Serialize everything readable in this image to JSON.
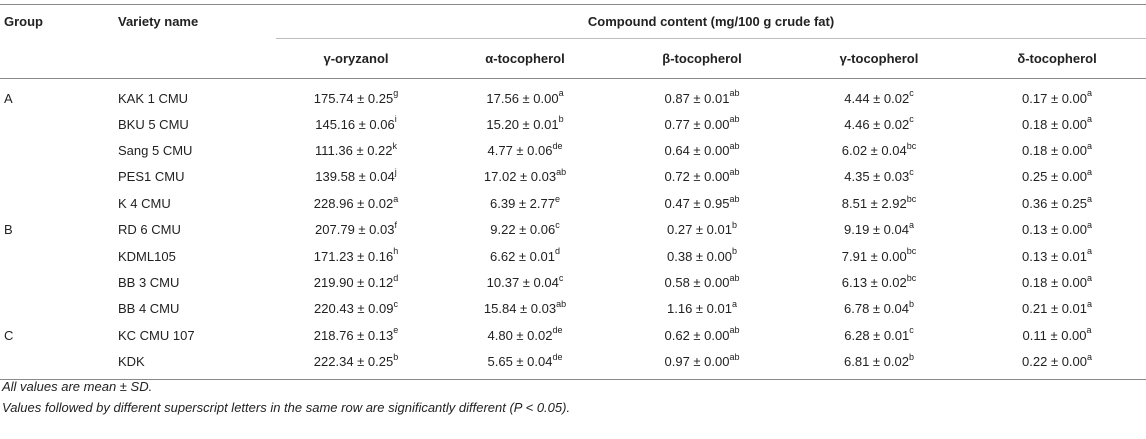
{
  "header": {
    "group": "Group",
    "variety": "Variety name",
    "compound_content": "Compound content (mg/100 g crude fat)",
    "columns": [
      "γ-oryzanol",
      "α-tocopherol",
      "β-tocopherol",
      "γ-tocopherol",
      "δ-tocopherol"
    ]
  },
  "rows": [
    {
      "group": "A",
      "variety": "KAK 1 CMU",
      "cells": [
        {
          "v": "175.74 ± 0.25",
          "s": "g"
        },
        {
          "v": "17.56 ± 0.00",
          "s": "a"
        },
        {
          "v": "0.87 ± 0.01",
          "s": "ab"
        },
        {
          "v": "4.44 ± 0.02",
          "s": "c"
        },
        {
          "v": "0.17 ± 0.00",
          "s": "a"
        }
      ]
    },
    {
      "group": "",
      "variety": "BKU 5 CMU",
      "cells": [
        {
          "v": "145.16 ± 0.06",
          "s": "i"
        },
        {
          "v": "15.20 ± 0.01",
          "s": "b"
        },
        {
          "v": "0.77 ± 0.00",
          "s": "ab"
        },
        {
          "v": "4.46 ± 0.02",
          "s": "c"
        },
        {
          "v": "0.18 ± 0.00",
          "s": "a"
        }
      ]
    },
    {
      "group": "",
      "variety": "Sang 5 CMU",
      "cells": [
        {
          "v": "111.36 ± 0.22",
          "s": "k"
        },
        {
          "v": "4.77 ± 0.06",
          "s": "de"
        },
        {
          "v": "0.64 ± 0.00",
          "s": "ab"
        },
        {
          "v": "6.02 ± 0.04",
          "s": "bc"
        },
        {
          "v": "0.18 ± 0.00",
          "s": "a"
        }
      ]
    },
    {
      "group": "",
      "variety": "PES1 CMU",
      "cells": [
        {
          "v": "139.58 ± 0.04",
          "s": "j"
        },
        {
          "v": "17.02 ± 0.03",
          "s": "ab"
        },
        {
          "v": "0.72 ± 0.00",
          "s": "ab"
        },
        {
          "v": "4.35 ± 0.03",
          "s": "c"
        },
        {
          "v": "0.25 ± 0.00",
          "s": "a"
        }
      ]
    },
    {
      "group": "",
      "variety": "K 4 CMU",
      "cells": [
        {
          "v": "228.96 ± 0.02",
          "s": "a"
        },
        {
          "v": "6.39 ± 2.77",
          "s": "e"
        },
        {
          "v": "0.47 ± 0.95",
          "s": "ab"
        },
        {
          "v": "8.51 ± 2.92",
          "s": "bc"
        },
        {
          "v": "0.36 ± 0.25",
          "s": "a"
        }
      ]
    },
    {
      "group": "B",
      "variety": "RD 6 CMU",
      "cells": [
        {
          "v": "207.79 ± 0.03",
          "s": "f"
        },
        {
          "v": "9.22 ± 0.06",
          "s": "c"
        },
        {
          "v": "0.27 ± 0.01",
          "s": "b"
        },
        {
          "v": "9.19 ± 0.04",
          "s": "a"
        },
        {
          "v": "0.13 ± 0.00",
          "s": "a"
        }
      ]
    },
    {
      "group": "",
      "variety": "KDML105",
      "cells": [
        {
          "v": "171.23 ± 0.16",
          "s": "h"
        },
        {
          "v": "6.62 ± 0.01",
          "s": "d"
        },
        {
          "v": "0.38 ± 0.00",
          "s": "b"
        },
        {
          "v": "7.91 ± 0.00",
          "s": "bc"
        },
        {
          "v": "0.13 ± 0.01",
          "s": "a"
        }
      ]
    },
    {
      "group": "",
      "variety": "BB 3 CMU",
      "cells": [
        {
          "v": "219.90 ± 0.12",
          "s": "d"
        },
        {
          "v": "10.37 ± 0.04",
          "s": "c"
        },
        {
          "v": "0.58 ± 0.00",
          "s": "ab"
        },
        {
          "v": "6.13 ± 0.02",
          "s": "bc"
        },
        {
          "v": "0.18 ± 0.00",
          "s": "a"
        }
      ]
    },
    {
      "group": "",
      "variety": "BB 4 CMU",
      "cells": [
        {
          "v": "220.43 ± 0.09",
          "s": "c"
        },
        {
          "v": "15.84 ± 0.03",
          "s": "ab"
        },
        {
          "v": "1.16 ± 0.01",
          "s": "a"
        },
        {
          "v": "6.78 ± 0.04",
          "s": "b"
        },
        {
          "v": "0.21 ± 0.01",
          "s": "a"
        }
      ]
    },
    {
      "group": "C",
      "variety": "KC CMU 107",
      "cells": [
        {
          "v": "218.76 ± 0.13",
          "s": "e"
        },
        {
          "v": "4.80 ± 0.02",
          "s": "de"
        },
        {
          "v": "0.62 ± 0.00",
          "s": "ab"
        },
        {
          "v": "6.28 ± 0.01",
          "s": "c"
        },
        {
          "v": "0.11 ± 0.00",
          "s": "a"
        }
      ]
    },
    {
      "group": "",
      "variety": "KDK",
      "cells": [
        {
          "v": "222.34 ± 0.25",
          "s": "b"
        },
        {
          "v": "5.65 ± 0.04",
          "s": "de"
        },
        {
          "v": "0.97 ± 0.00",
          "s": "ab"
        },
        {
          "v": "6.81 ± 0.02",
          "s": "b"
        },
        {
          "v": "0.22 ± 0.00",
          "s": "a"
        }
      ]
    }
  ],
  "notes": [
    "All values are mean ± SD.",
    "Values followed by different superscript letters in the same row are significantly different (P < 0.05)."
  ]
}
